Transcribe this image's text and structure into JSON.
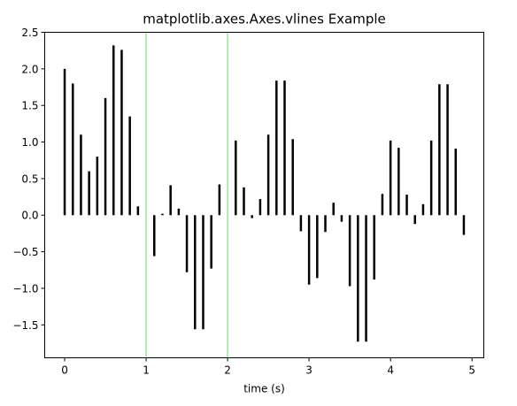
{
  "chart_data": {
    "type": "bar",
    "title": "matplotlib.axes.Axes.vlines Example",
    "xlabel": "time (s)",
    "ylabel": "",
    "xlim": [
      -0.245,
      5.145
    ],
    "ylim": [
      -1.95,
      2.5
    ],
    "xticks": [
      0,
      1,
      2,
      3,
      4,
      5
    ],
    "xtick_labels": [
      "0",
      "1",
      "2",
      "3",
      "4",
      "5"
    ],
    "yticks": [
      -1.5,
      -1.0,
      -0.5,
      0.0,
      0.5,
      1.0,
      1.5,
      2.0,
      2.5
    ],
    "ytick_labels": [
      "−1.5",
      "−1.0",
      "−0.5",
      "0.0",
      "0.5",
      "1.0",
      "1.5",
      "2.0",
      "2.5"
    ],
    "grid": false,
    "series": [
      {
        "mark": "vlines",
        "color": "#000000",
        "x": [
          0.0,
          0.1,
          0.2,
          0.3,
          0.4,
          0.5,
          0.6,
          0.7,
          0.8,
          0.9,
          1.0,
          1.1,
          1.2,
          1.3,
          1.4,
          1.5,
          1.6,
          1.7,
          1.8,
          1.9,
          2.0,
          2.1,
          2.2,
          2.3,
          2.4,
          2.5,
          2.6,
          2.7,
          2.8,
          2.9,
          3.0,
          3.1,
          3.2,
          3.3,
          3.4,
          3.5,
          3.6,
          3.7,
          3.8,
          3.9,
          4.0,
          4.1,
          4.2,
          4.3,
          4.4,
          4.5,
          4.6,
          4.7,
          4.8,
          4.9
        ],
        "y": [
          2.0,
          1.8,
          1.1,
          0.6,
          0.8,
          1.6,
          2.32,
          2.26,
          1.35,
          0.12,
          0.0,
          -0.56,
          0.02,
          0.41,
          0.09,
          -0.78,
          -1.56,
          -1.56,
          -0.73,
          0.42,
          0.0,
          1.02,
          0.38,
          -0.04,
          0.22,
          1.1,
          1.84,
          1.84,
          1.04,
          -0.22,
          -0.95,
          -0.86,
          -0.23,
          0.17,
          -0.09,
          -0.97,
          -1.73,
          -1.73,
          -0.88,
          0.29,
          1.02,
          0.92,
          0.28,
          -0.12,
          0.15,
          1.02,
          1.79,
          1.79,
          0.91,
          -0.27
        ]
      },
      {
        "mark": "vlines",
        "color": "#90ee90",
        "x": [
          1,
          2
        ],
        "full_height": true
      }
    ]
  }
}
